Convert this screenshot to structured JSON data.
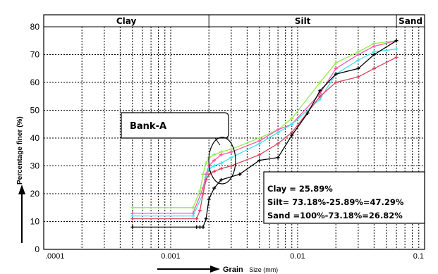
{
  "chart_data": {
    "type": "line",
    "xscale": "log",
    "xlim": [
      0.0001,
      0.1
    ],
    "ylim": [
      0,
      80
    ],
    "grid": true,
    "title": "",
    "ylabel": "Percentage finer (%)",
    "xlabel_main": "Grain",
    "xlabel_unit": "Size (mm)",
    "yticks": [
      "0",
      "10",
      "20",
      "30",
      "40",
      "50",
      "60",
      "70",
      "80"
    ],
    "xticks": [
      ".0001",
      "0.001",
      "0.01",
      "0.1"
    ],
    "bands": [
      {
        "label": "Clay",
        "from": 0.0001,
        "to": 0.002
      },
      {
        "label": "Silt",
        "from": 0.002,
        "to": 0.06
      },
      {
        "label": "Sand",
        "from": 0.06,
        "to": 0.1
      }
    ],
    "callout": "Bank-A",
    "results": [
      "Clay = 25.89%",
      "Silt= 73.18%-25.89%=47.29%",
      "Sand =100%-73.18%=26.82%"
    ],
    "series": [
      {
        "color": "#90ee50",
        "x": [
          0.0005,
          0.0015,
          0.0017,
          0.0018,
          0.0019,
          0.002,
          0.0022,
          0.0025,
          0.003,
          0.005,
          0.007,
          0.009,
          0.015,
          0.02,
          0.03,
          0.04,
          0.06
        ],
        "y": [
          15,
          15,
          21,
          27,
          31,
          33,
          34,
          35,
          36,
          40,
          43,
          47,
          60,
          67,
          71,
          74,
          75
        ]
      },
      {
        "color": "#ff55aa",
        "x": [
          0.0005,
          0.0015,
          0.0018,
          0.0019,
          0.002,
          0.0022,
          0.0025,
          0.003,
          0.005,
          0.007,
          0.009,
          0.015,
          0.02,
          0.03,
          0.04,
          0.06
        ],
        "y": [
          13,
          13,
          22,
          27,
          30,
          32,
          34,
          35,
          39,
          43,
          45,
          56,
          65,
          70,
          73,
          75
        ]
      },
      {
        "color": "#40e0f0",
        "x": [
          0.0005,
          0.0015,
          0.0018,
          0.0019,
          0.002,
          0.0022,
          0.0025,
          0.003,
          0.005,
          0.007,
          0.009,
          0.015,
          0.02,
          0.03,
          0.04,
          0.06
        ],
        "y": [
          12,
          12,
          20,
          26,
          29,
          30,
          31,
          33,
          38,
          42,
          45,
          54,
          63,
          68,
          71,
          72
        ]
      },
      {
        "color": "#e0405a",
        "x": [
          0.0005,
          0.0016,
          0.0017,
          0.0018,
          0.0019,
          0.002,
          0.0022,
          0.0025,
          0.003,
          0.005,
          0.007,
          0.009,
          0.015,
          0.02,
          0.03,
          0.04,
          0.06
        ],
        "y": [
          11,
          11,
          14,
          20,
          25,
          27,
          28,
          29,
          30,
          34,
          38,
          42,
          55,
          60,
          62,
          65,
          69
        ]
      },
      {
        "color": "#000000",
        "x": [
          0.0005,
          0.0016,
          0.0017,
          0.0018,
          0.0019,
          0.002,
          0.0022,
          0.0025,
          0.0035,
          0.005,
          0.007,
          0.009,
          0.012,
          0.015,
          0.02,
          0.03,
          0.04,
          0.06
        ],
        "y": [
          8,
          8,
          8,
          8,
          11,
          18,
          22,
          25,
          27,
          32,
          33,
          41,
          49,
          57,
          63,
          65,
          70,
          75
        ]
      }
    ]
  }
}
